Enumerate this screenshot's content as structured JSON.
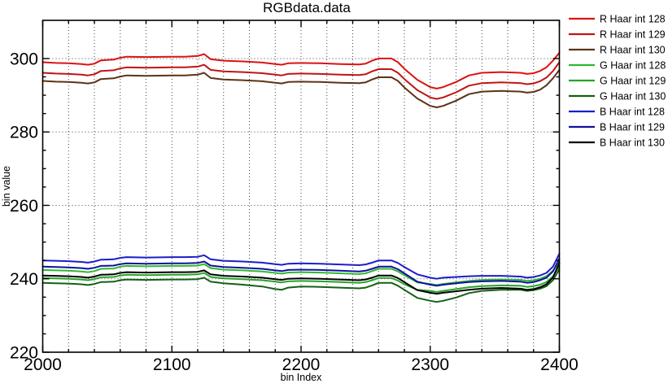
{
  "window": {
    "background": "#ffffff",
    "border_color": "#000000",
    "grid_color": "#444444"
  },
  "chart_data": {
    "type": "line",
    "title": "RGBdata.data",
    "xlabel": "bin Index",
    "ylabel": "bin value",
    "xlim": [
      2000,
      2400
    ],
    "ylim": [
      220,
      310.4
    ],
    "x_major_ticks": [
      2000,
      2100,
      2200,
      2300,
      2400
    ],
    "x_minor_step": 20,
    "y_major_ticks": [
      220,
      240,
      260,
      280,
      300
    ],
    "y_minor_step": 5,
    "grid": {
      "style": "dotted",
      "x_every": 20,
      "y_every": 20
    },
    "legend_position": "outside-right-top",
    "x": [
      2000,
      2010,
      2020,
      2030,
      2035,
      2040,
      2045,
      2055,
      2060,
      2065,
      2080,
      2100,
      2110,
      2120,
      2125,
      2130,
      2140,
      2155,
      2170,
      2180,
      2185,
      2190,
      2200,
      2215,
      2230,
      2245,
      2250,
      2255,
      2260,
      2270,
      2275,
      2280,
      2290,
      2300,
      2305,
      2310,
      2320,
      2330,
      2340,
      2355,
      2370,
      2375,
      2380,
      2385,
      2390,
      2395,
      2400
    ],
    "series": [
      {
        "name": "R Haar int 128",
        "color": "#dd1212",
        "values": [
          299.0,
          298.8,
          298.7,
          298.5,
          298.3,
          298.6,
          299.5,
          299.7,
          300.2,
          300.5,
          300.4,
          300.5,
          300.5,
          300.7,
          301.2,
          299.8,
          299.4,
          299.2,
          298.9,
          298.5,
          298.3,
          298.7,
          298.8,
          298.7,
          298.5,
          298.4,
          298.6,
          299.4,
          300.0,
          300.0,
          299.0,
          297.2,
          294.2,
          292.2,
          291.8,
          292.2,
          293.6,
          295.4,
          296.1,
          296.3,
          296.1,
          295.8,
          296.0,
          296.6,
          297.6,
          299.4,
          301.6
        ]
      },
      {
        "name": "R Haar int 129",
        "color": "#c01414",
        "values": [
          296.1,
          295.9,
          295.8,
          295.6,
          295.4,
          295.7,
          296.6,
          296.8,
          297.3,
          297.6,
          297.5,
          297.6,
          297.6,
          297.8,
          298.3,
          296.9,
          296.5,
          296.3,
          296.0,
          295.6,
          295.4,
          295.8,
          295.9,
          295.8,
          295.6,
          295.5,
          295.7,
          296.5,
          297.1,
          297.1,
          296.1,
          294.4,
          291.4,
          289.4,
          289.0,
          289.4,
          290.8,
          292.6,
          293.3,
          293.5,
          293.3,
          293.0,
          293.2,
          293.8,
          294.8,
          296.6,
          299.0
        ]
      },
      {
        "name": "R Haar int 130",
        "color": "#5c3317",
        "values": [
          293.9,
          293.7,
          293.6,
          293.4,
          293.2,
          293.5,
          294.4,
          294.6,
          295.1,
          295.4,
          295.3,
          295.4,
          295.4,
          295.6,
          296.1,
          294.7,
          294.3,
          294.1,
          293.8,
          293.4,
          293.2,
          293.6,
          293.7,
          293.6,
          293.4,
          293.3,
          293.5,
          294.3,
          294.9,
          294.9,
          293.9,
          292.1,
          289.1,
          287.1,
          286.7,
          287.1,
          288.5,
          290.3,
          291.0,
          291.2,
          291.0,
          290.7,
          290.9,
          291.5,
          292.7,
          294.6,
          296.9
        ]
      },
      {
        "name": "G Haar int 128",
        "color": "#30b830",
        "values": [
          242.4,
          242.3,
          242.2,
          242.0,
          241.8,
          242.1,
          242.7,
          242.8,
          243.3,
          243.5,
          243.4,
          243.5,
          243.5,
          243.6,
          244.0,
          242.9,
          242.5,
          242.3,
          242.0,
          241.6,
          241.4,
          241.7,
          241.8,
          241.7,
          241.5,
          241.3,
          241.5,
          242.1,
          242.7,
          242.7,
          242.0,
          241.0,
          239.0,
          238.6,
          238.3,
          238.6,
          239.0,
          239.4,
          239.7,
          239.8,
          239.7,
          239.4,
          239.6,
          240.0,
          240.7,
          242.2,
          244.7
        ]
      },
      {
        "name": "G Haar int 129",
        "color": "#28a428",
        "values": [
          240.2,
          240.1,
          240.0,
          239.8,
          239.6,
          239.9,
          240.4,
          240.5,
          240.9,
          241.1,
          241.0,
          241.1,
          241.1,
          241.2,
          241.6,
          240.5,
          240.1,
          239.9,
          239.6,
          239.2,
          239.0,
          239.3,
          239.4,
          239.3,
          239.1,
          238.9,
          239.1,
          239.6,
          240.2,
          240.2,
          239.5,
          238.5,
          237.0,
          236.7,
          236.4,
          236.7,
          237.2,
          237.7,
          238.0,
          238.2,
          238.1,
          237.8,
          238.0,
          238.4,
          239.1,
          240.6,
          243.5
        ]
      },
      {
        "name": "G Haar int 130",
        "color": "#156015",
        "values": [
          238.9,
          238.8,
          238.7,
          238.5,
          238.3,
          238.6,
          239.1,
          239.2,
          239.6,
          239.8,
          239.7,
          239.8,
          239.8,
          239.9,
          240.3,
          239.2,
          238.8,
          238.4,
          237.9,
          237.2,
          237.0,
          237.6,
          237.9,
          237.8,
          237.6,
          237.4,
          237.6,
          238.2,
          238.9,
          238.9,
          238.1,
          237.0,
          234.8,
          234.0,
          233.7,
          234.0,
          234.9,
          236.1,
          236.7,
          237.0,
          237.0,
          236.7,
          236.9,
          237.3,
          238.0,
          239.6,
          242.6
        ]
      },
      {
        "name": "B Haar int 128",
        "color": "#1c1ccc",
        "values": [
          245.0,
          244.9,
          244.8,
          244.6,
          244.4,
          244.7,
          245.2,
          245.3,
          245.7,
          245.9,
          245.8,
          245.9,
          245.9,
          246.0,
          246.4,
          245.3,
          244.9,
          244.7,
          244.4,
          244.0,
          243.8,
          244.1,
          244.2,
          244.1,
          243.9,
          243.7,
          243.9,
          244.4,
          245.0,
          245.0,
          244.3,
          243.2,
          241.2,
          240.3,
          240.0,
          240.3,
          240.5,
          240.7,
          240.8,
          240.8,
          240.6,
          240.3,
          240.5,
          240.9,
          241.6,
          243.3,
          246.8
        ]
      },
      {
        "name": "B Haar int 129",
        "color": "#10109e",
        "values": [
          243.3,
          243.2,
          243.1,
          242.9,
          242.7,
          243.0,
          243.5,
          243.6,
          244.0,
          244.2,
          244.1,
          244.2,
          244.2,
          244.3,
          244.7,
          243.6,
          243.2,
          243.0,
          242.7,
          242.3,
          242.1,
          242.4,
          242.5,
          242.4,
          242.2,
          242.0,
          242.2,
          242.7,
          243.3,
          243.3,
          242.6,
          241.5,
          239.2,
          238.4,
          238.1,
          238.4,
          238.8,
          239.1,
          239.3,
          239.4,
          239.2,
          238.9,
          239.1,
          239.6,
          240.3,
          242.0,
          245.5
        ]
      },
      {
        "name": "B Haar int 130",
        "color": "#000000",
        "values": [
          240.9,
          240.8,
          240.7,
          240.5,
          240.3,
          240.6,
          241.1,
          241.2,
          241.6,
          241.8,
          241.7,
          241.8,
          241.8,
          241.9,
          242.3,
          241.2,
          240.8,
          240.6,
          240.3,
          239.9,
          239.7,
          240.0,
          240.1,
          240.0,
          239.8,
          239.6,
          239.8,
          240.3,
          240.9,
          240.9,
          240.2,
          239.1,
          236.9,
          236.2,
          235.9,
          236.2,
          236.6,
          237.0,
          237.3,
          237.5,
          237.3,
          237.0,
          237.2,
          237.7,
          238.5,
          240.4,
          244.3
        ]
      }
    ]
  }
}
